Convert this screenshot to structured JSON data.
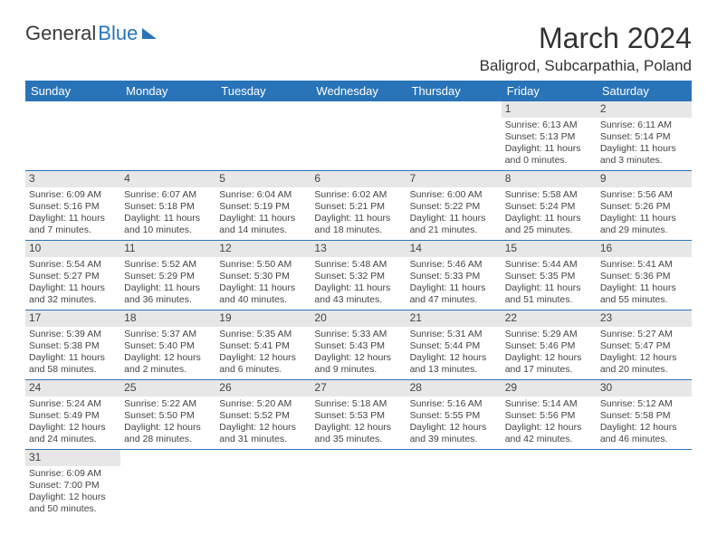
{
  "logo": {
    "text1": "General",
    "text2": "Blue"
  },
  "title": "March 2024",
  "location": "Baligrod, Subcarpathia, Poland",
  "colors": {
    "header_bg": "#2974b8",
    "header_text": "#ffffff",
    "daynum_bg": "#e7e7e7",
    "row_border": "#2974b8",
    "text": "#444444",
    "page_bg": "#ffffff"
  },
  "typography": {
    "title_fontsize": 32,
    "location_fontsize": 17,
    "weekday_fontsize": 13,
    "daynum_fontsize": 12,
    "body_fontsize": 10.5,
    "logo_fontsize": 22
  },
  "weekdays": [
    "Sunday",
    "Monday",
    "Tuesday",
    "Wednesday",
    "Thursday",
    "Friday",
    "Saturday"
  ],
  "rows": [
    [
      {
        "empty": true
      },
      {
        "empty": true
      },
      {
        "empty": true
      },
      {
        "empty": true
      },
      {
        "empty": true
      },
      {
        "day": "1",
        "sunrise": "Sunrise: 6:13 AM",
        "sunset": "Sunset: 5:13 PM",
        "daylight1": "Daylight: 11 hours",
        "daylight2": "and 0 minutes."
      },
      {
        "day": "2",
        "sunrise": "Sunrise: 6:11 AM",
        "sunset": "Sunset: 5:14 PM",
        "daylight1": "Daylight: 11 hours",
        "daylight2": "and 3 minutes."
      }
    ],
    [
      {
        "day": "3",
        "sunrise": "Sunrise: 6:09 AM",
        "sunset": "Sunset: 5:16 PM",
        "daylight1": "Daylight: 11 hours",
        "daylight2": "and 7 minutes."
      },
      {
        "day": "4",
        "sunrise": "Sunrise: 6:07 AM",
        "sunset": "Sunset: 5:18 PM",
        "daylight1": "Daylight: 11 hours",
        "daylight2": "and 10 minutes."
      },
      {
        "day": "5",
        "sunrise": "Sunrise: 6:04 AM",
        "sunset": "Sunset: 5:19 PM",
        "daylight1": "Daylight: 11 hours",
        "daylight2": "and 14 minutes."
      },
      {
        "day": "6",
        "sunrise": "Sunrise: 6:02 AM",
        "sunset": "Sunset: 5:21 PM",
        "daylight1": "Daylight: 11 hours",
        "daylight2": "and 18 minutes."
      },
      {
        "day": "7",
        "sunrise": "Sunrise: 6:00 AM",
        "sunset": "Sunset: 5:22 PM",
        "daylight1": "Daylight: 11 hours",
        "daylight2": "and 21 minutes."
      },
      {
        "day": "8",
        "sunrise": "Sunrise: 5:58 AM",
        "sunset": "Sunset: 5:24 PM",
        "daylight1": "Daylight: 11 hours",
        "daylight2": "and 25 minutes."
      },
      {
        "day": "9",
        "sunrise": "Sunrise: 5:56 AM",
        "sunset": "Sunset: 5:26 PM",
        "daylight1": "Daylight: 11 hours",
        "daylight2": "and 29 minutes."
      }
    ],
    [
      {
        "day": "10",
        "sunrise": "Sunrise: 5:54 AM",
        "sunset": "Sunset: 5:27 PM",
        "daylight1": "Daylight: 11 hours",
        "daylight2": "and 32 minutes."
      },
      {
        "day": "11",
        "sunrise": "Sunrise: 5:52 AM",
        "sunset": "Sunset: 5:29 PM",
        "daylight1": "Daylight: 11 hours",
        "daylight2": "and 36 minutes."
      },
      {
        "day": "12",
        "sunrise": "Sunrise: 5:50 AM",
        "sunset": "Sunset: 5:30 PM",
        "daylight1": "Daylight: 11 hours",
        "daylight2": "and 40 minutes."
      },
      {
        "day": "13",
        "sunrise": "Sunrise: 5:48 AM",
        "sunset": "Sunset: 5:32 PM",
        "daylight1": "Daylight: 11 hours",
        "daylight2": "and 43 minutes."
      },
      {
        "day": "14",
        "sunrise": "Sunrise: 5:46 AM",
        "sunset": "Sunset: 5:33 PM",
        "daylight1": "Daylight: 11 hours",
        "daylight2": "and 47 minutes."
      },
      {
        "day": "15",
        "sunrise": "Sunrise: 5:44 AM",
        "sunset": "Sunset: 5:35 PM",
        "daylight1": "Daylight: 11 hours",
        "daylight2": "and 51 minutes."
      },
      {
        "day": "16",
        "sunrise": "Sunrise: 5:41 AM",
        "sunset": "Sunset: 5:36 PM",
        "daylight1": "Daylight: 11 hours",
        "daylight2": "and 55 minutes."
      }
    ],
    [
      {
        "day": "17",
        "sunrise": "Sunrise: 5:39 AM",
        "sunset": "Sunset: 5:38 PM",
        "daylight1": "Daylight: 11 hours",
        "daylight2": "and 58 minutes."
      },
      {
        "day": "18",
        "sunrise": "Sunrise: 5:37 AM",
        "sunset": "Sunset: 5:40 PM",
        "daylight1": "Daylight: 12 hours",
        "daylight2": "and 2 minutes."
      },
      {
        "day": "19",
        "sunrise": "Sunrise: 5:35 AM",
        "sunset": "Sunset: 5:41 PM",
        "daylight1": "Daylight: 12 hours",
        "daylight2": "and 6 minutes."
      },
      {
        "day": "20",
        "sunrise": "Sunrise: 5:33 AM",
        "sunset": "Sunset: 5:43 PM",
        "daylight1": "Daylight: 12 hours",
        "daylight2": "and 9 minutes."
      },
      {
        "day": "21",
        "sunrise": "Sunrise: 5:31 AM",
        "sunset": "Sunset: 5:44 PM",
        "daylight1": "Daylight: 12 hours",
        "daylight2": "and 13 minutes."
      },
      {
        "day": "22",
        "sunrise": "Sunrise: 5:29 AM",
        "sunset": "Sunset: 5:46 PM",
        "daylight1": "Daylight: 12 hours",
        "daylight2": "and 17 minutes."
      },
      {
        "day": "23",
        "sunrise": "Sunrise: 5:27 AM",
        "sunset": "Sunset: 5:47 PM",
        "daylight1": "Daylight: 12 hours",
        "daylight2": "and 20 minutes."
      }
    ],
    [
      {
        "day": "24",
        "sunrise": "Sunrise: 5:24 AM",
        "sunset": "Sunset: 5:49 PM",
        "daylight1": "Daylight: 12 hours",
        "daylight2": "and 24 minutes."
      },
      {
        "day": "25",
        "sunrise": "Sunrise: 5:22 AM",
        "sunset": "Sunset: 5:50 PM",
        "daylight1": "Daylight: 12 hours",
        "daylight2": "and 28 minutes."
      },
      {
        "day": "26",
        "sunrise": "Sunrise: 5:20 AM",
        "sunset": "Sunset: 5:52 PM",
        "daylight1": "Daylight: 12 hours",
        "daylight2": "and 31 minutes."
      },
      {
        "day": "27",
        "sunrise": "Sunrise: 5:18 AM",
        "sunset": "Sunset: 5:53 PM",
        "daylight1": "Daylight: 12 hours",
        "daylight2": "and 35 minutes."
      },
      {
        "day": "28",
        "sunrise": "Sunrise: 5:16 AM",
        "sunset": "Sunset: 5:55 PM",
        "daylight1": "Daylight: 12 hours",
        "daylight2": "and 39 minutes."
      },
      {
        "day": "29",
        "sunrise": "Sunrise: 5:14 AM",
        "sunset": "Sunset: 5:56 PM",
        "daylight1": "Daylight: 12 hours",
        "daylight2": "and 42 minutes."
      },
      {
        "day": "30",
        "sunrise": "Sunrise: 5:12 AM",
        "sunset": "Sunset: 5:58 PM",
        "daylight1": "Daylight: 12 hours",
        "daylight2": "and 46 minutes."
      }
    ],
    [
      {
        "day": "31",
        "sunrise": "Sunrise: 6:09 AM",
        "sunset": "Sunset: 7:00 PM",
        "daylight1": "Daylight: 12 hours",
        "daylight2": "and 50 minutes."
      },
      {
        "empty": true
      },
      {
        "empty": true
      },
      {
        "empty": true
      },
      {
        "empty": true
      },
      {
        "empty": true
      },
      {
        "empty": true
      }
    ]
  ]
}
